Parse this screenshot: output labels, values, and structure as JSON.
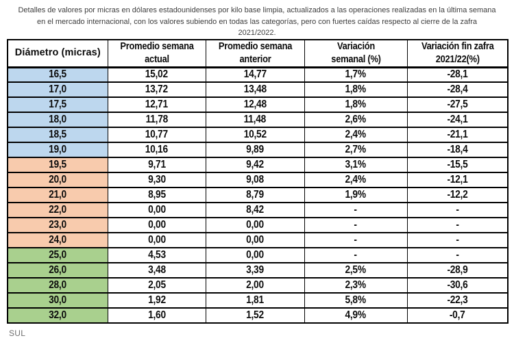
{
  "title": "Detalles de valores por micras en dólares estadounidenses por kilo base limpia, actualizados a las operaciones realizadas en la última semana en el mercado internacional,  con los valores subiendo en todas las categorías, pero con fuertes caídas respecto al cierre de la zafra 2021/2022.",
  "table": {
    "headers": [
      {
        "line1": "Diámetro (micras)",
        "line2": ""
      },
      {
        "line1": "Promedio semana",
        "line2": "actual"
      },
      {
        "line1": "Promedio semana",
        "line2": "anterior"
      },
      {
        "line1": "Variación",
        "line2": "semanal (%)"
      },
      {
        "line1": "Variación fin zafra",
        "line2": "2021/22(%)"
      }
    ],
    "rows": [
      {
        "d": "16,5",
        "a": "15,02",
        "p": "14,77",
        "vs": "1,7%",
        "vz": "-28,1",
        "g": "blue"
      },
      {
        "d": "17,0",
        "a": "13,72",
        "p": "13,48",
        "vs": "1,8%",
        "vz": "-28,4",
        "g": "blue"
      },
      {
        "d": "17,5",
        "a": "12,71",
        "p": "12,48",
        "vs": "1,8%",
        "vz": "-27,5",
        "g": "blue"
      },
      {
        "d": "18,0",
        "a": "11,78",
        "p": "11,48",
        "vs": "2,6%",
        "vz": "-24,1",
        "g": "blue"
      },
      {
        "d": "18,5",
        "a": "10,77",
        "p": "10,52",
        "vs": "2,4%",
        "vz": "-21,1",
        "g": "blue"
      },
      {
        "d": "19,0",
        "a": "10,16",
        "p": "9,89",
        "vs": "2,7%",
        "vz": "-18,4",
        "g": "blue"
      },
      {
        "d": "19,5",
        "a": "9,71",
        "p": "9,42",
        "vs": "3,1%",
        "vz": "-15,5",
        "g": "orange"
      },
      {
        "d": "20,0",
        "a": "9,30",
        "p": "9,08",
        "vs": "2,4%",
        "vz": "-12,1",
        "g": "orange"
      },
      {
        "d": "21,0",
        "a": "8,95",
        "p": "8,79",
        "vs": "1,9%",
        "vz": "-12,2",
        "g": "orange"
      },
      {
        "d": "22,0",
        "a": "0,00",
        "p": "8,42",
        "vs": "-",
        "vz": "-",
        "g": "orange"
      },
      {
        "d": "23,0",
        "a": "0,00",
        "p": "0,00",
        "vs": "-",
        "vz": "-",
        "g": "orange"
      },
      {
        "d": "24,0",
        "a": "0,00",
        "p": "0,00",
        "vs": "-",
        "vz": "-",
        "g": "orange"
      },
      {
        "d": "25,0",
        "a": "4,53",
        "p": "0,00",
        "vs": "-",
        "vz": "-",
        "g": "green"
      },
      {
        "d": "26,0",
        "a": "3,48",
        "p": "3,39",
        "vs": "2,5%",
        "vz": "-28,9",
        "g": "green"
      },
      {
        "d": "28,0",
        "a": "2,05",
        "p": "2,00",
        "vs": "2,3%",
        "vz": "-30,6",
        "g": "green"
      },
      {
        "d": "30,0",
        "a": "1,92",
        "p": "1,81",
        "vs": "5,8%",
        "vz": "-22,3",
        "g": "green"
      },
      {
        "d": "32,0",
        "a": "1,60",
        "p": "1,52",
        "vs": "4,9%",
        "vz": "-0,7",
        "g": "green"
      }
    ]
  },
  "footer": {
    "source": "SUL"
  },
  "colors": {
    "blue": "#BDD7EE",
    "orange": "#F8CBAD",
    "green": "#A9D08E"
  },
  "chart_data": {
    "type": "table",
    "title": "Detalles de valores por micras en dólares estadounidenses por kilo base limpia",
    "columns": [
      "Diámetro (micras)",
      "Promedio semana actual",
      "Promedio semana anterior",
      "Variación semanal (%)",
      "Variación fin zafra 2021/22(%)"
    ],
    "categories": [
      16.5,
      17.0,
      17.5,
      18.0,
      18.5,
      19.0,
      19.5,
      20.0,
      21.0,
      22.0,
      23.0,
      24.0,
      25.0,
      26.0,
      28.0,
      30.0,
      32.0
    ],
    "series": [
      {
        "name": "Promedio semana actual",
        "values": [
          15.02,
          13.72,
          12.71,
          11.78,
          10.77,
          10.16,
          9.71,
          9.3,
          8.95,
          0.0,
          0.0,
          0.0,
          4.53,
          3.48,
          2.05,
          1.92,
          1.6
        ]
      },
      {
        "name": "Promedio semana anterior",
        "values": [
          14.77,
          13.48,
          12.48,
          11.48,
          10.52,
          9.89,
          9.42,
          9.08,
          8.79,
          8.42,
          0.0,
          0.0,
          0.0,
          3.39,
          2.0,
          1.81,
          1.52
        ]
      },
      {
        "name": "Variación semanal (%)",
        "values": [
          1.7,
          1.8,
          1.8,
          2.6,
          2.4,
          2.7,
          3.1,
          2.4,
          1.9,
          null,
          null,
          null,
          null,
          2.5,
          2.3,
          5.8,
          4.9
        ]
      },
      {
        "name": "Variación fin zafra 2021/22 (%)",
        "values": [
          -28.1,
          -28.4,
          -27.5,
          -24.1,
          -21.1,
          -18.4,
          -15.5,
          -12.1,
          -12.2,
          null,
          null,
          null,
          null,
          -28.9,
          -30.6,
          -22.3,
          -0.7
        ]
      }
    ],
    "row_groups": [
      {
        "color": "#BDD7EE",
        "categories": [
          16.5,
          17.0,
          17.5,
          18.0,
          18.5,
          19.0
        ]
      },
      {
        "color": "#F8CBAD",
        "categories": [
          19.5,
          20.0,
          21.0,
          22.0,
          23.0,
          24.0
        ]
      },
      {
        "color": "#A9D08E",
        "categories": [
          25.0,
          26.0,
          28.0,
          30.0,
          32.0
        ]
      }
    ],
    "source": "SUL"
  }
}
